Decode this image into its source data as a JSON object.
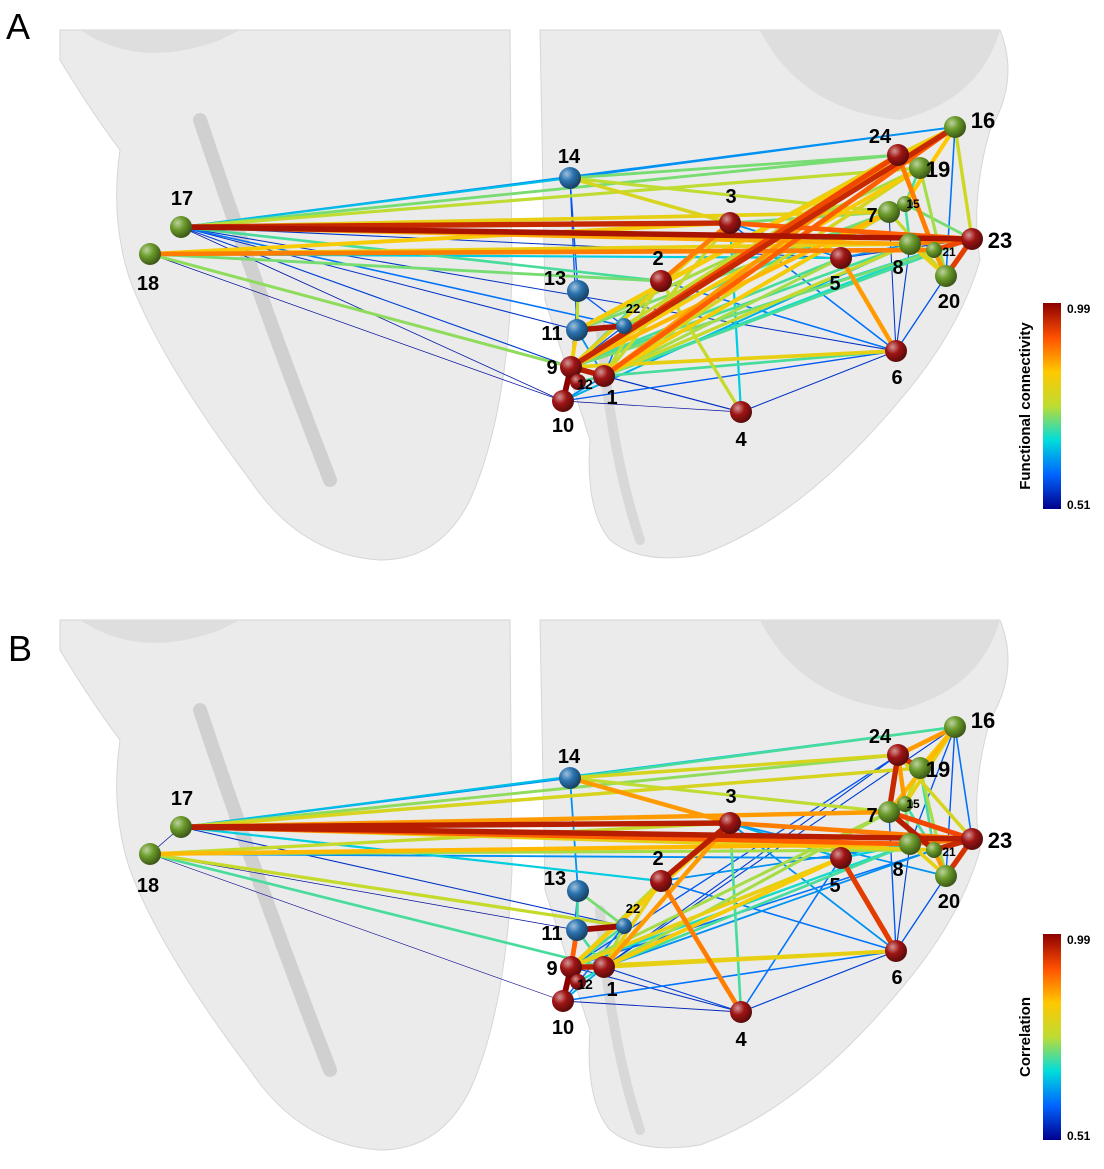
{
  "panels": [
    {
      "letter": "A",
      "colorbar": {
        "title": "Functional connectivity",
        "max_label": "0.99",
        "min_label": "0.51"
      },
      "edges": [
        [
          17,
          16,
          0.62
        ],
        [
          17,
          24,
          0.72
        ],
        [
          17,
          3,
          0.95
        ],
        [
          17,
          7,
          0.8
        ],
        [
          17,
          8,
          0.85
        ],
        [
          17,
          23,
          0.97
        ],
        [
          17,
          2,
          0.7
        ],
        [
          17,
          22,
          0.6
        ],
        [
          17,
          11,
          0.55
        ],
        [
          17,
          9,
          0.56
        ],
        [
          17,
          10,
          0.53
        ],
        [
          17,
          6,
          0.55
        ],
        [
          17,
          14,
          0.65
        ],
        [
          17,
          19,
          0.75
        ],
        [
          17,
          5,
          0.55
        ],
        [
          18,
          8,
          0.8
        ],
        [
          18,
          21,
          0.88
        ],
        [
          18,
          2,
          0.72
        ],
        [
          18,
          1,
          0.73
        ],
        [
          18,
          9,
          0.55
        ],
        [
          18,
          3,
          0.82
        ],
        [
          18,
          5,
          0.66
        ],
        [
          18,
          10,
          0.52
        ],
        [
          14,
          24,
          0.72
        ],
        [
          14,
          16,
          0.62
        ],
        [
          14,
          3,
          0.78
        ],
        [
          14,
          13,
          0.58
        ],
        [
          14,
          11,
          0.57
        ],
        [
          14,
          7,
          0.75
        ],
        [
          3,
          2,
          0.88
        ],
        [
          3,
          1,
          0.76
        ],
        [
          3,
          9,
          0.8
        ],
        [
          3,
          4,
          0.66
        ],
        [
          3,
          7,
          0.72
        ],
        [
          3,
          23,
          0.9
        ],
        [
          3,
          5,
          0.62
        ],
        [
          3,
          6,
          0.6
        ],
        [
          2,
          4,
          0.76
        ],
        [
          2,
          6,
          0.6
        ],
        [
          2,
          9,
          0.7
        ],
        [
          2,
          1,
          0.75
        ],
        [
          5,
          6,
          0.86
        ],
        [
          5,
          1,
          0.74
        ],
        [
          5,
          9,
          0.7
        ],
        [
          5,
          8,
          0.62
        ],
        [
          5,
          23,
          0.56
        ],
        [
          7,
          1,
          0.82
        ],
        [
          7,
          9,
          0.84
        ],
        [
          7,
          11,
          0.72
        ],
        [
          7,
          22,
          0.7
        ],
        [
          8,
          1,
          0.76
        ],
        [
          8,
          9,
          0.7
        ],
        [
          8,
          10,
          0.64
        ],
        [
          16,
          9,
          0.95
        ],
        [
          16,
          1,
          0.9
        ],
        [
          16,
          11,
          0.82
        ],
        [
          16,
          24,
          0.8
        ],
        [
          16,
          15,
          0.83
        ],
        [
          16,
          20,
          0.6
        ],
        [
          16,
          23,
          0.77
        ],
        [
          24,
          9,
          0.92
        ],
        [
          24,
          1,
          0.86
        ],
        [
          24,
          11,
          0.8
        ],
        [
          24,
          22,
          0.76
        ],
        [
          24,
          19,
          0.86
        ],
        [
          24,
          21,
          0.88
        ],
        [
          19,
          9,
          0.82
        ],
        [
          19,
          1,
          0.78
        ],
        [
          19,
          11,
          0.74
        ],
        [
          19,
          15,
          0.7
        ],
        [
          19,
          20,
          0.74
        ],
        [
          23,
          9,
          0.72
        ],
        [
          23,
          1,
          0.7
        ],
        [
          23,
          20,
          0.93
        ],
        [
          23,
          21,
          0.92
        ],
        [
          23,
          8,
          0.88
        ],
        [
          23,
          15,
          0.72
        ],
        [
          20,
          8,
          0.8
        ],
        [
          20,
          7,
          0.76
        ],
        [
          20,
          21,
          0.86
        ],
        [
          20,
          6,
          0.58
        ],
        [
          21,
          1,
          0.68
        ],
        [
          21,
          9,
          0.66
        ],
        [
          15,
          1,
          0.72
        ],
        [
          15,
          9,
          0.7
        ],
        [
          15,
          8,
          0.7
        ],
        [
          6,
          1,
          0.7
        ],
        [
          6,
          9,
          0.8
        ],
        [
          6,
          10,
          0.58
        ],
        [
          6,
          4,
          0.55
        ],
        [
          6,
          7,
          0.55
        ],
        [
          6,
          8,
          0.56
        ],
        [
          4,
          1,
          0.54
        ],
        [
          4,
          9,
          0.55
        ],
        [
          4,
          10,
          0.52
        ],
        [
          11,
          22,
          0.97
        ],
        [
          11,
          9,
          0.82
        ],
        [
          11,
          1,
          0.62
        ],
        [
          11,
          13,
          0.75
        ],
        [
          13,
          22,
          0.58
        ],
        [
          13,
          9,
          0.56
        ],
        [
          9,
          10,
          0.99
        ],
        [
          9,
          1,
          0.96
        ],
        [
          9,
          12,
          0.72
        ],
        [
          1,
          10,
          0.62
        ],
        [
          12,
          1,
          0.7
        ],
        [
          22,
          1,
          0.6
        ],
        [
          22,
          9,
          0.58
        ]
      ]
    },
    {
      "letter": "B",
      "colorbar": {
        "title": "Correlation",
        "max_label": "0.99",
        "min_label": "0.51"
      },
      "edges": [
        [
          17,
          16,
          0.65
        ],
        [
          17,
          24,
          0.73
        ],
        [
          17,
          3,
          0.96
        ],
        [
          17,
          7,
          0.86
        ],
        [
          17,
          8,
          0.9
        ],
        [
          17,
          23,
          0.96
        ],
        [
          17,
          14,
          0.62
        ],
        [
          17,
          19,
          0.78
        ],
        [
          17,
          2,
          0.66
        ],
        [
          17,
          22,
          0.55
        ],
        [
          17,
          21,
          0.8
        ],
        [
          17,
          18,
          0.52
        ],
        [
          18,
          3,
          0.76
        ],
        [
          18,
          8,
          0.84
        ],
        [
          18,
          5,
          0.62
        ],
        [
          18,
          22,
          0.76
        ],
        [
          18,
          1,
          0.7
        ],
        [
          18,
          11,
          0.52
        ],
        [
          18,
          10,
          0.51
        ],
        [
          18,
          21,
          0.74
        ],
        [
          14,
          24,
          0.78
        ],
        [
          14,
          16,
          0.7
        ],
        [
          14,
          3,
          0.86
        ],
        [
          14,
          13,
          0.62
        ],
        [
          14,
          7,
          0.75
        ],
        [
          3,
          2,
          0.96
        ],
        [
          3,
          1,
          0.86
        ],
        [
          3,
          9,
          0.82
        ],
        [
          3,
          4,
          0.7
        ],
        [
          3,
          6,
          0.62
        ],
        [
          3,
          5,
          0.64
        ],
        [
          3,
          23,
          0.88
        ],
        [
          3,
          20,
          0.62
        ],
        [
          2,
          4,
          0.88
        ],
        [
          2,
          1,
          0.8
        ],
        [
          2,
          9,
          0.76
        ],
        [
          2,
          6,
          0.6
        ],
        [
          5,
          6,
          0.93
        ],
        [
          5,
          1,
          0.82
        ],
        [
          5,
          9,
          0.8
        ],
        [
          5,
          8,
          0.66
        ],
        [
          5,
          4,
          0.6
        ],
        [
          6,
          1,
          0.8
        ],
        [
          6,
          9,
          0.8
        ],
        [
          6,
          4,
          0.56
        ],
        [
          6,
          10,
          0.6
        ],
        [
          6,
          7,
          0.58
        ],
        [
          6,
          20,
          0.58
        ],
        [
          6,
          8,
          0.56
        ],
        [
          4,
          1,
          0.56
        ],
        [
          4,
          10,
          0.54
        ],
        [
          4,
          9,
          0.55
        ],
        [
          7,
          1,
          0.74
        ],
        [
          7,
          9,
          0.74
        ],
        [
          7,
          21,
          0.96
        ],
        [
          7,
          23,
          0.92
        ],
        [
          8,
          1,
          0.7
        ],
        [
          8,
          9,
          0.68
        ],
        [
          8,
          2,
          0.62
        ],
        [
          8,
          23,
          0.88
        ],
        [
          16,
          24,
          0.86
        ],
        [
          16,
          19,
          0.82
        ],
        [
          16,
          15,
          0.8
        ],
        [
          16,
          7,
          0.84
        ],
        [
          16,
          23,
          0.6
        ],
        [
          16,
          20,
          0.58
        ],
        [
          16,
          8,
          0.58
        ],
        [
          16,
          1,
          0.56
        ],
        [
          24,
          19,
          0.94
        ],
        [
          24,
          7,
          0.95
        ],
        [
          24,
          15,
          0.86
        ],
        [
          24,
          23,
          0.78
        ],
        [
          24,
          9,
          0.58
        ],
        [
          24,
          1,
          0.56
        ],
        [
          19,
          15,
          0.76
        ],
        [
          19,
          20,
          0.74
        ],
        [
          19,
          21,
          0.7
        ],
        [
          23,
          20,
          0.94
        ],
        [
          23,
          21,
          0.95
        ],
        [
          20,
          21,
          0.86
        ],
        [
          20,
          8,
          0.8
        ],
        [
          15,
          8,
          0.72
        ],
        [
          15,
          21,
          0.7
        ],
        [
          21,
          1,
          0.62
        ],
        [
          21,
          9,
          0.6
        ],
        [
          11,
          22,
          0.98
        ],
        [
          11,
          13,
          0.7
        ],
        [
          11,
          9,
          0.9
        ],
        [
          11,
          1,
          0.7
        ],
        [
          13,
          22,
          0.72
        ],
        [
          13,
          9,
          0.6
        ],
        [
          9,
          10,
          0.99
        ],
        [
          9,
          1,
          0.96
        ],
        [
          9,
          12,
          0.72
        ],
        [
          1,
          10,
          0.64
        ],
        [
          12,
          1,
          0.68
        ],
        [
          22,
          1,
          0.74
        ],
        [
          22,
          9,
          0.7
        ],
        [
          22,
          10,
          0.6
        ]
      ]
    }
  ],
  "nodes": [
    {
      "id": 1,
      "label": "1",
      "color": "red"
    },
    {
      "id": 2,
      "label": "2",
      "color": "red"
    },
    {
      "id": 3,
      "label": "3",
      "color": "red"
    },
    {
      "id": 4,
      "label": "4",
      "color": "red"
    },
    {
      "id": 5,
      "label": "5",
      "color": "red"
    },
    {
      "id": 6,
      "label": "6",
      "color": "red"
    },
    {
      "id": 7,
      "label": "7",
      "color": "green"
    },
    {
      "id": 8,
      "label": "8",
      "color": "green"
    },
    {
      "id": 9,
      "label": "9",
      "color": "red"
    },
    {
      "id": 10,
      "label": "10",
      "color": "red"
    },
    {
      "id": 11,
      "label": "11",
      "color": "blue"
    },
    {
      "id": 12,
      "label": "12",
      "color": "red"
    },
    {
      "id": 13,
      "label": "13",
      "color": "blue"
    },
    {
      "id": 14,
      "label": "14",
      "color": "blue"
    },
    {
      "id": 15,
      "label": "15",
      "color": "green"
    },
    {
      "id": 16,
      "label": "16",
      "color": "green"
    },
    {
      "id": 17,
      "label": "17",
      "color": "green"
    },
    {
      "id": 18,
      "label": "18",
      "color": "green"
    },
    {
      "id": 19,
      "label": "19",
      "color": "green"
    },
    {
      "id": 20,
      "label": "20",
      "color": "green"
    },
    {
      "id": 21,
      "label": "21",
      "color": "green"
    },
    {
      "id": 22,
      "label": "22",
      "color": "blue"
    },
    {
      "id": 23,
      "label": "23",
      "color": "red"
    },
    {
      "id": 24,
      "label": "24",
      "color": "red"
    }
  ],
  "node_colors": {
    "red": "#a01414",
    "green": "#6a9a2a",
    "blue": "#2a73b0"
  },
  "colorscale": [
    "#00008c",
    "#0064ff",
    "#00dcdc",
    "#bedc32",
    "#ffc800",
    "#ff5000",
    "#8c0000"
  ],
  "value_range": [
    0.51,
    0.99
  ]
}
